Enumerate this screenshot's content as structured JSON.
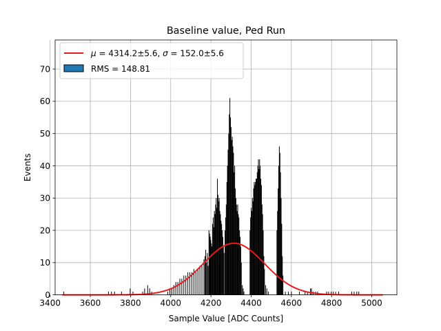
{
  "chart_data": {
    "type": "bar",
    "title": "Baseline value, Ped Run",
    "xlabel": "Sample Value [ADC Counts]",
    "ylabel": "Events",
    "xlim": [
      3425,
      5125
    ],
    "ylim": [
      0,
      79
    ],
    "xticks": [
      3400,
      3600,
      3800,
      4000,
      4200,
      4400,
      4600,
      4800,
      5000
    ],
    "yticks": [
      0,
      10,
      20,
      30,
      40,
      50,
      60,
      70
    ],
    "grid": true,
    "legend_position": "top-left",
    "legend": {
      "fit_label_mu": "μ",
      "fit_text_1": " = 4314.2±5.6, ",
      "fit_label_sigma": "σ",
      "fit_text_2": " = 152.0±5.6",
      "hist_label": "RMS = 148.81"
    },
    "colors": {
      "fit_line": "#e8191b",
      "histogram": "#000000",
      "legend_patch": "#1f77b4",
      "grid": "#b0b0b0"
    },
    "fit": {
      "type": "gaussian",
      "mu": 4314.2,
      "sigma": 152.0,
      "amplitude": 16,
      "x_range": [
        3460,
        5055
      ]
    },
    "series": [
      {
        "name": "RMS = 148.81",
        "values": [
          [
            3468,
            1
          ],
          [
            3690,
            1
          ],
          [
            3705,
            1
          ],
          [
            3720,
            1
          ],
          [
            3755,
            1
          ],
          [
            3798,
            2
          ],
          [
            3812,
            1
          ],
          [
            3860,
            1
          ],
          [
            3870,
            2
          ],
          [
            3885,
            3
          ],
          [
            3895,
            2
          ],
          [
            3905,
            1
          ],
          [
            3985,
            1
          ],
          [
            3995,
            2
          ],
          [
            4005,
            2
          ],
          [
            4015,
            3
          ],
          [
            4025,
            4
          ],
          [
            4035,
            4
          ],
          [
            4045,
            5
          ],
          [
            4055,
            5
          ],
          [
            4065,
            6
          ],
          [
            4075,
            6
          ],
          [
            4085,
            7
          ],
          [
            4095,
            7
          ],
          [
            4105,
            7
          ],
          [
            4115,
            8
          ],
          [
            4125,
            7
          ],
          [
            4135,
            8
          ],
          [
            4145,
            9
          ],
          [
            4155,
            9
          ],
          [
            4165,
            11
          ],
          [
            4170,
            12
          ],
          [
            4174,
            14
          ],
          [
            4178,
            10
          ],
          [
            4182,
            13
          ],
          [
            4186,
            9
          ],
          [
            4190,
            20
          ],
          [
            4193,
            19
          ],
          [
            4196,
            18
          ],
          [
            4199,
            17
          ],
          [
            4202,
            16
          ],
          [
            4205,
            15
          ],
          [
            4208,
            22
          ],
          [
            4211,
            24
          ],
          [
            4214,
            21
          ],
          [
            4217,
            26
          ],
          [
            4220,
            25
          ],
          [
            4223,
            28
          ],
          [
            4226,
            30
          ],
          [
            4229,
            27
          ],
          [
            4232,
            36
          ],
          [
            4235,
            31
          ],
          [
            4238,
            29
          ],
          [
            4241,
            30
          ],
          [
            4244,
            26
          ],
          [
            4247,
            25
          ],
          [
            4250,
            23
          ],
          [
            4253,
            22
          ],
          [
            4256,
            20
          ],
          [
            4259,
            18
          ],
          [
            4262,
            15
          ],
          [
            4265,
            13
          ],
          [
            4270,
            20
          ],
          [
            4273,
            24
          ],
          [
            4276,
            28
          ],
          [
            4279,
            35
          ],
          [
            4282,
            40
          ],
          [
            4285,
            45
          ],
          [
            4288,
            50
          ],
          [
            4291,
            56
          ],
          [
            4294,
            61
          ],
          [
            4297,
            55
          ],
          [
            4300,
            52
          ],
          [
            4303,
            48
          ],
          [
            4306,
            49
          ],
          [
            4309,
            46
          ],
          [
            4312,
            44
          ],
          [
            4315,
            38
          ],
          [
            4318,
            40
          ],
          [
            4321,
            33
          ],
          [
            4324,
            30
          ],
          [
            4327,
            28
          ],
          [
            4330,
            26
          ],
          [
            4333,
            28
          ],
          [
            4336,
            25
          ],
          [
            4339,
            24
          ],
          [
            4342,
            20
          ],
          [
            4345,
            18
          ],
          [
            4348,
            15
          ],
          [
            4351,
            10
          ],
          [
            4356,
            3
          ],
          [
            4360,
            2
          ],
          [
            4364,
            1
          ],
          [
            4394,
            20
          ],
          [
            4397,
            24
          ],
          [
            4400,
            27
          ],
          [
            4403,
            26
          ],
          [
            4406,
            30
          ],
          [
            4409,
            29
          ],
          [
            4412,
            33
          ],
          [
            4415,
            35
          ],
          [
            4418,
            34
          ],
          [
            4421,
            35
          ],
          [
            4424,
            36
          ],
          [
            4427,
            36
          ],
          [
            4430,
            38
          ],
          [
            4433,
            40
          ],
          [
            4436,
            42
          ],
          [
            4439,
            39
          ],
          [
            4442,
            42
          ],
          [
            4445,
            40
          ],
          [
            4448,
            36
          ],
          [
            4451,
            34
          ],
          [
            4454,
            28
          ],
          [
            4457,
            25
          ],
          [
            4460,
            20
          ],
          [
            4463,
            12
          ],
          [
            4466,
            8
          ],
          [
            4472,
            3
          ],
          [
            4478,
            2
          ],
          [
            4486,
            1
          ],
          [
            4528,
            20
          ],
          [
            4531,
            26
          ],
          [
            4534,
            33
          ],
          [
            4537,
            40
          ],
          [
            4540,
            46
          ],
          [
            4543,
            44
          ],
          [
            4546,
            38
          ],
          [
            4549,
            30
          ],
          [
            4552,
            22
          ],
          [
            4555,
            12
          ],
          [
            4558,
            6
          ],
          [
            4570,
            1
          ],
          [
            4585,
            1
          ],
          [
            4600,
            1
          ],
          [
            4640,
            1
          ],
          [
            4668,
            1
          ],
          [
            4680,
            1
          ],
          [
            4695,
            2
          ],
          [
            4700,
            2
          ],
          [
            4708,
            1
          ],
          [
            4720,
            1
          ],
          [
            4730,
            1
          ],
          [
            4775,
            1
          ],
          [
            4785,
            1
          ],
          [
            4798,
            1
          ],
          [
            4808,
            1
          ],
          [
            4820,
            1
          ],
          [
            4835,
            1
          ],
          [
            4900,
            1
          ],
          [
            4912,
            1
          ],
          [
            4925,
            1
          ],
          [
            4935,
            1
          ]
        ]
      }
    ]
  }
}
